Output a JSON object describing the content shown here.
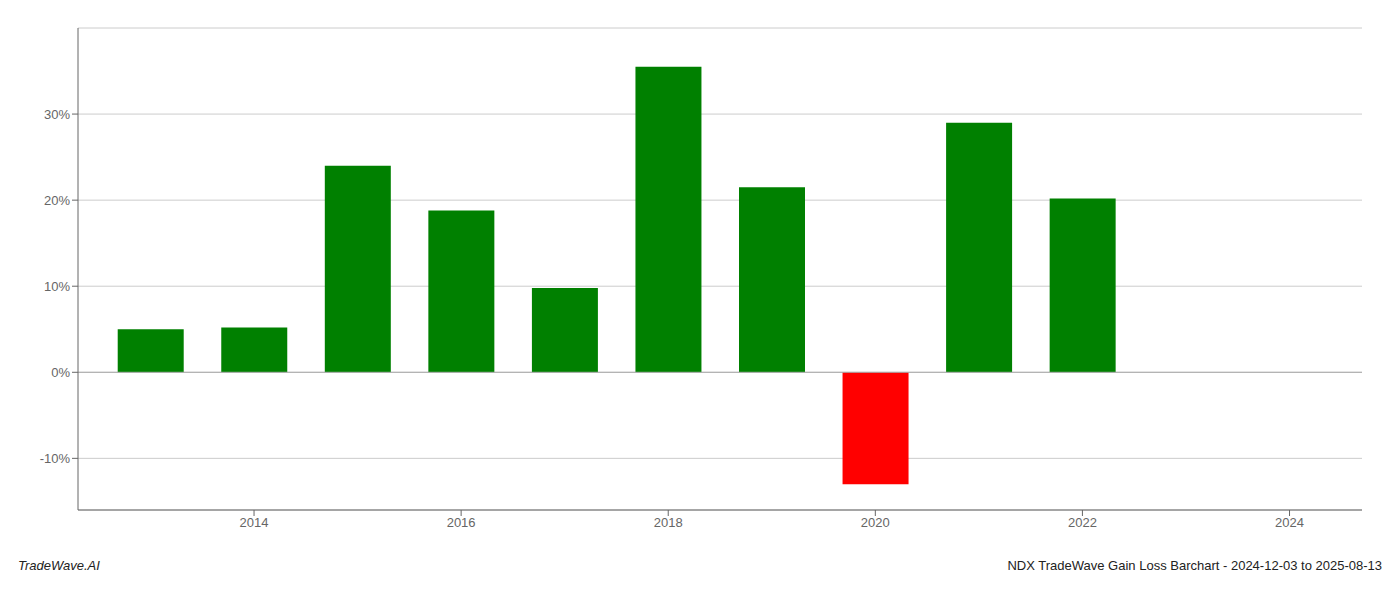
{
  "chart_data": {
    "type": "bar",
    "x": [
      2013,
      2014,
      2015,
      2016,
      2017,
      2018,
      2019,
      2020,
      2021,
      2022,
      2023
    ],
    "values": [
      5.0,
      5.2,
      24.0,
      18.8,
      9.8,
      35.5,
      21.5,
      -13.0,
      29.0,
      20.2,
      0
    ],
    "colors": [
      "#008000",
      "#008000",
      "#008000",
      "#008000",
      "#008000",
      "#008000",
      "#008000",
      "#ff0000",
      "#008000",
      "#008000",
      "#ffffff"
    ],
    "xlim": [
      2012.3,
      2024.7
    ],
    "xticks": [
      2014,
      2016,
      2018,
      2020,
      2022,
      2024
    ],
    "ylim": [
      -16,
      40
    ],
    "yticks": [
      {
        "value": -10,
        "label": "-10%"
      },
      {
        "value": 0,
        "label": "0%"
      },
      {
        "value": 10,
        "label": "10%"
      },
      {
        "value": 20,
        "label": "20%"
      },
      {
        "value": 30,
        "label": "30%"
      }
    ],
    "grid": true,
    "annotations": [
      "TradeWave.AI",
      "NDX TradeWave Gain Loss Barchart - 2024-12-03 to 2025-08-13"
    ]
  }
}
